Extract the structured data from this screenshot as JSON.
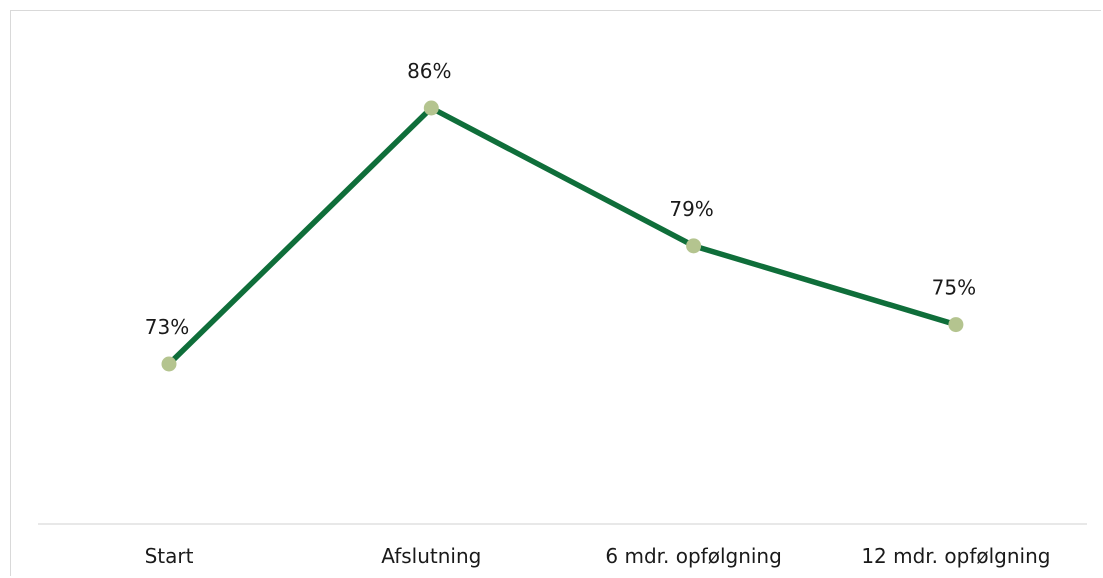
{
  "chart_data": {
    "type": "line",
    "categories": [
      "Start",
      "Afslutning",
      "6 mdr. opfølgning",
      "12 mdr. opfølgning"
    ],
    "series": [
      {
        "values": [
          73,
          86,
          79,
          75
        ],
        "data_labels": [
          "73%",
          "86%",
          "79%",
          "75%"
        ]
      }
    ],
    "ylim": [
      60,
      88
    ],
    "grid": false,
    "legend": "none",
    "colors": {
      "line": "#0f6e3a",
      "marker": "#b4c48f",
      "axis": "#d9d9d9",
      "text": "#1a1a1a"
    }
  }
}
